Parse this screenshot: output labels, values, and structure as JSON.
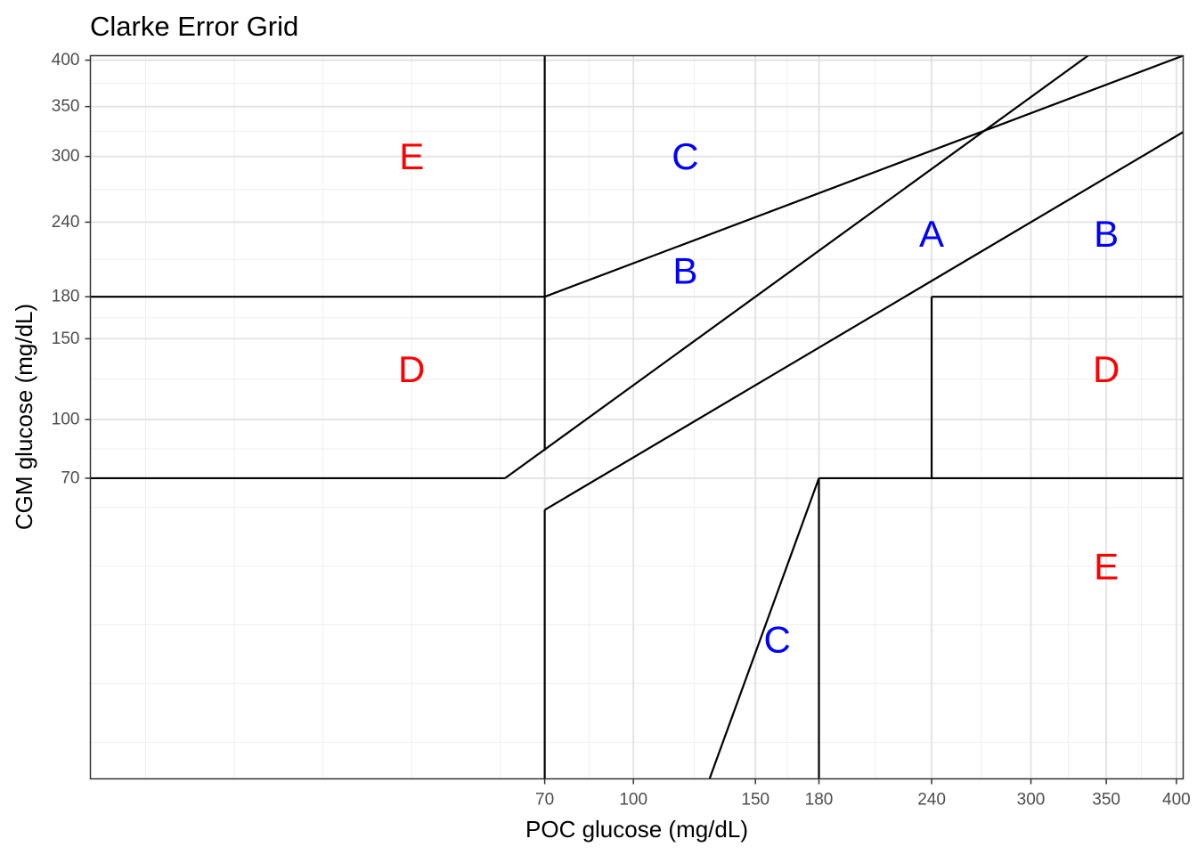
{
  "chart_data": {
    "type": "line",
    "title": "Clarke Error Grid",
    "xlabel": "POC glucose (mg/dL)",
    "ylabel": "CGM glucose (mg/dL)",
    "scale": "sqrt",
    "xlim": [
      0,
      405
    ],
    "ylim": [
      0,
      405
    ],
    "x_ticks": [
      70,
      100,
      150,
      180,
      240,
      300,
      350,
      400
    ],
    "y_ticks": [
      70,
      100,
      150,
      180,
      240,
      300,
      350,
      400
    ],
    "grid": true,
    "legend": "none",
    "colors": {
      "red": "#ff0000",
      "blue": "#0000ff",
      "line": "#000000"
    },
    "series": [
      {
        "x": [
          70,
          70
        ],
        "y": [
          83.33,
          405
        ]
      },
      {
        "x": [
          70,
          70
        ],
        "y": [
          0,
          56
        ]
      },
      {
        "x": [
          70,
          405
        ],
        "y": [
          180,
          405
        ]
      },
      {
        "x": [
          58.33,
          405
        ],
        "y": [
          70,
          486
        ]
      },
      {
        "x": [
          70,
          405
        ],
        "y": [
          56,
          324
        ]
      },
      {
        "x": [
          0,
          58.33
        ],
        "y": [
          70,
          70
        ]
      },
      {
        "x": [
          180,
          405
        ],
        "y": [
          70,
          70
        ]
      },
      {
        "x": [
          240,
          240
        ],
        "y": [
          70,
          180
        ]
      },
      {
        "x": [
          240,
          405
        ],
        "y": [
          180,
          180
        ]
      },
      {
        "x": [
          0,
          70
        ],
        "y": [
          180,
          180
        ]
      },
      {
        "x": [
          130,
          180
        ],
        "y": [
          0,
          70
        ]
      },
      {
        "x": [
          180,
          180
        ],
        "y": [
          0,
          70
        ]
      }
    ],
    "annotations": [
      {
        "text": "A",
        "x": 240,
        "y": 230,
        "color": "blue"
      },
      {
        "text": "B",
        "x": 120,
        "y": 200,
        "color": "blue"
      },
      {
        "text": "B",
        "x": 350,
        "y": 230,
        "color": "blue"
      },
      {
        "text": "C",
        "x": 120,
        "y": 300,
        "color": "blue"
      },
      {
        "text": "C",
        "x": 160,
        "y": 15,
        "color": "blue"
      },
      {
        "text": "D",
        "x": 35,
        "y": 130,
        "color": "red"
      },
      {
        "text": "D",
        "x": 350,
        "y": 130,
        "color": "red"
      },
      {
        "text": "E",
        "x": 35,
        "y": 300,
        "color": "red"
      },
      {
        "text": "E",
        "x": 350,
        "y": 35,
        "color": "red"
      }
    ]
  }
}
